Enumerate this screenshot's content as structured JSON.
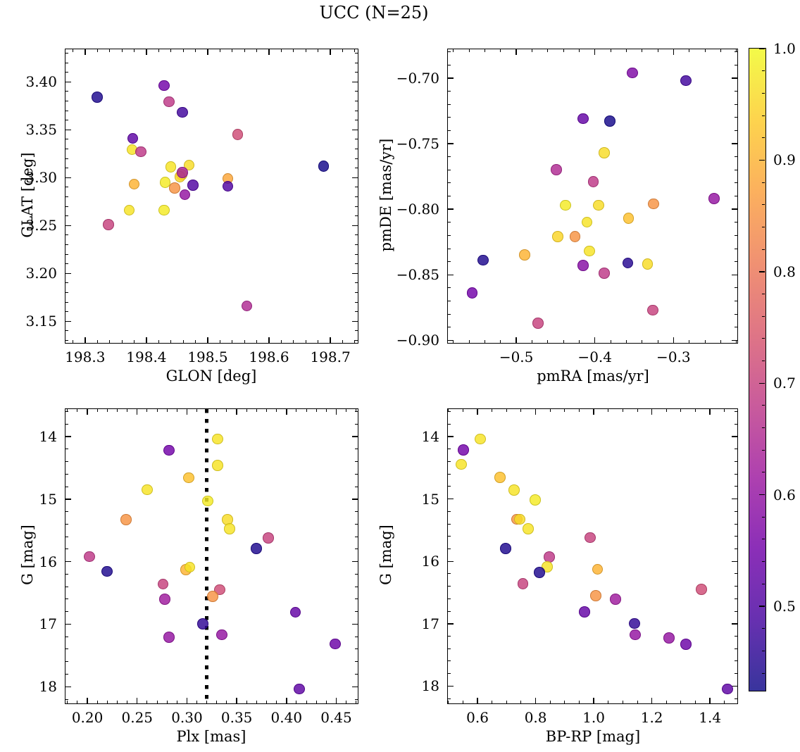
{
  "title": "UCC (N=25)",
  "colorbar": {
    "colormap": "plasma",
    "vmin": 0.423,
    "vmax": 1.0,
    "tick_values": [
      1.0,
      0.9,
      0.8,
      0.7,
      0.6,
      0.5
    ],
    "tick_labels": [
      "1.0",
      "0.9",
      "0.8",
      "0.7",
      "0.6",
      "0.5"
    ],
    "minor_step": 0.02
  },
  "chart_data": [
    {
      "id": "glon-glat",
      "type": "scatter",
      "xlabel": "GLON [deg]",
      "ylabel": "GLAT [deg]",
      "xlim": [
        198.268,
        198.747
      ],
      "ylim_top_bottom": [
        3.434,
        3.126
      ],
      "xticks": {
        "values": [
          198.3,
          198.4,
          198.5,
          198.6,
          198.7
        ],
        "labels": [
          "198.3",
          "198.4",
          "198.5",
          "198.6",
          "198.7"
        ],
        "minor_step": 0.02
      },
      "yticks": {
        "values": [
          3.15,
          3.2,
          3.25,
          3.3,
          3.35,
          3.4
        ],
        "labels": [
          "3.15",
          "3.20",
          "3.25",
          "3.30",
          "3.35",
          "3.40"
        ],
        "minor_step": 0.01
      },
      "points": [
        [
          198.32,
          3.384,
          0.44
        ],
        [
          198.429,
          3.396,
          0.55
        ],
        [
          198.437,
          3.379,
          0.68
        ],
        [
          198.459,
          3.368,
          0.48
        ],
        [
          198.378,
          3.341,
          0.52
        ],
        [
          198.377,
          3.329,
          0.97
        ],
        [
          198.391,
          3.327,
          0.68
        ],
        [
          198.549,
          3.345,
          0.72
        ],
        [
          198.44,
          3.311,
          0.97
        ],
        [
          198.47,
          3.313,
          0.96
        ],
        [
          198.458,
          3.303,
          0.96
        ],
        [
          198.455,
          3.301,
          0.95
        ],
        [
          198.459,
          3.305,
          0.63
        ],
        [
          198.431,
          3.295,
          0.98
        ],
        [
          198.446,
          3.289,
          0.85
        ],
        [
          198.476,
          3.292,
          0.5
        ],
        [
          198.463,
          3.282,
          0.6
        ],
        [
          198.533,
          3.299,
          0.88
        ],
        [
          198.533,
          3.291,
          0.5
        ],
        [
          198.38,
          3.293,
          0.9
        ],
        [
          198.689,
          3.312,
          0.43
        ],
        [
          198.372,
          3.266,
          0.97
        ],
        [
          198.429,
          3.266,
          0.98
        ],
        [
          198.338,
          3.251,
          0.7
        ],
        [
          198.564,
          3.166,
          0.65
        ]
      ]
    },
    {
      "id": "pmra-pmde",
      "type": "scatter",
      "xlabel": "pmRA [mas/yr]",
      "ylabel": "pmDE [mas/yr]",
      "xlim": [
        -0.587,
        -0.217
      ],
      "ylim_top_bottom": [
        -0.678,
        -0.903
      ],
      "xticks": {
        "values": [
          -0.5,
          -0.4,
          -0.3
        ],
        "labels": [
          "−0.5",
          "−0.4",
          "−0.3"
        ],
        "minor_step": 0.02
      },
      "yticks": {
        "values": [
          -0.9,
          -0.85,
          -0.8,
          -0.75,
          -0.7
        ],
        "labels": [
          "−0.90",
          "−0.85",
          "−0.80",
          "−0.75",
          "−0.70"
        ],
        "minor_step": 0.01
      },
      "points": [
        [
          -0.352,
          -0.696,
          0.57
        ],
        [
          -0.284,
          -0.702,
          0.48
        ],
        [
          -0.415,
          -0.731,
          0.53
        ],
        [
          -0.381,
          -0.733,
          0.43
        ],
        [
          -0.388,
          -0.757,
          0.96
        ],
        [
          -0.449,
          -0.77,
          0.65
        ],
        [
          -0.402,
          -0.779,
          0.68
        ],
        [
          -0.437,
          -0.797,
          0.98
        ],
        [
          -0.395,
          -0.797,
          0.96
        ],
        [
          -0.325,
          -0.796,
          0.85
        ],
        [
          -0.248,
          -0.792,
          0.6
        ],
        [
          -0.357,
          -0.807,
          0.92
        ],
        [
          -0.41,
          -0.81,
          0.97
        ],
        [
          -0.447,
          -0.821,
          0.95
        ],
        [
          -0.425,
          -0.821,
          0.85
        ],
        [
          -0.407,
          -0.832,
          0.97
        ],
        [
          -0.489,
          -0.835,
          0.9
        ],
        [
          -0.542,
          -0.839,
          0.44
        ],
        [
          -0.415,
          -0.843,
          0.58
        ],
        [
          -0.358,
          -0.841,
          0.45
        ],
        [
          -0.333,
          -0.842,
          0.96
        ],
        [
          -0.388,
          -0.849,
          0.68
        ],
        [
          -0.556,
          -0.864,
          0.55
        ],
        [
          -0.326,
          -0.877,
          0.7
        ],
        [
          -0.472,
          -0.887,
          0.7
        ]
      ]
    },
    {
      "id": "plx-g",
      "type": "scatter",
      "xlabel": "Plx [mas]",
      "ylabel": "G [mag]",
      "xlim": [
        0.178,
        0.473
      ],
      "ylim_top_bottom": [
        13.56,
        18.29
      ],
      "vline_x": 0.32,
      "xticks": {
        "values": [
          0.2,
          0.25,
          0.3,
          0.35,
          0.4,
          0.45
        ],
        "labels": [
          "0.20",
          "0.25",
          "0.30",
          "0.35",
          "0.40",
          "0.45"
        ],
        "minor_step": 0.01
      },
      "yticks": {
        "values": [
          14,
          15,
          16,
          17,
          18
        ],
        "labels": [
          "14",
          "15",
          "16",
          "17",
          "18"
        ],
        "minor_step": 0.2
      },
      "points": [
        [
          0.331,
          14.04,
          0.97
        ],
        [
          0.282,
          14.22,
          0.55
        ],
        [
          0.331,
          14.46,
          0.97
        ],
        [
          0.302,
          14.66,
          0.92
        ],
        [
          0.26,
          14.85,
          0.97
        ],
        [
          0.321,
          15.03,
          0.98
        ],
        [
          0.239,
          15.33,
          0.85
        ],
        [
          0.341,
          15.33,
          0.96
        ],
        [
          0.343,
          15.48,
          0.97
        ],
        [
          0.382,
          15.62,
          0.7
        ],
        [
          0.37,
          15.79,
          0.44
        ],
        [
          0.202,
          15.92,
          0.68
        ],
        [
          0.299,
          16.13,
          0.9
        ],
        [
          0.303,
          16.09,
          0.97
        ],
        [
          0.22,
          16.16,
          0.44
        ],
        [
          0.276,
          16.36,
          0.7
        ],
        [
          0.333,
          16.45,
          0.72
        ],
        [
          0.326,
          16.56,
          0.85
        ],
        [
          0.278,
          16.6,
          0.62
        ],
        [
          0.409,
          16.81,
          0.53
        ],
        [
          0.316,
          17.0,
          0.46
        ],
        [
          0.335,
          17.17,
          0.6
        ],
        [
          0.282,
          17.21,
          0.6
        ],
        [
          0.449,
          17.32,
          0.54
        ],
        [
          0.413,
          18.04,
          0.52
        ]
      ]
    },
    {
      "id": "bprp-g",
      "type": "scatter",
      "xlabel": "BP-RP [mag]",
      "ylabel": "G [mag]",
      "xlim": [
        0.498,
        1.499
      ],
      "ylim_top_bottom": [
        13.56,
        18.3
      ],
      "xticks": {
        "values": [
          0.6,
          0.8,
          1.0,
          1.2,
          1.4
        ],
        "labels": [
          "0.6",
          "0.8",
          "1.0",
          "1.2",
          "1.4"
        ],
        "minor_step": 0.05
      },
      "yticks": {
        "values": [
          14,
          15,
          16,
          17,
          18
        ],
        "labels": [
          "14",
          "15",
          "16",
          "17",
          "18"
        ],
        "minor_step": 0.2
      },
      "points": [
        [
          0.61,
          14.04,
          0.97
        ],
        [
          0.552,
          14.22,
          0.55
        ],
        [
          0.544,
          14.45,
          0.97
        ],
        [
          0.678,
          14.66,
          0.92
        ],
        [
          0.726,
          14.86,
          0.97
        ],
        [
          0.799,
          15.02,
          0.98
        ],
        [
          0.736,
          15.33,
          0.85
        ],
        [
          0.745,
          15.33,
          0.96
        ],
        [
          0.775,
          15.48,
          0.97
        ],
        [
          0.988,
          15.62,
          0.7
        ],
        [
          0.697,
          15.8,
          0.44
        ],
        [
          0.847,
          15.93,
          0.68
        ],
        [
          0.84,
          16.09,
          0.97
        ],
        [
          1.014,
          16.13,
          0.9
        ],
        [
          0.813,
          16.18,
          0.44
        ],
        [
          0.757,
          16.36,
          0.7
        ],
        [
          1.371,
          16.45,
          0.72
        ],
        [
          1.007,
          16.55,
          0.85
        ],
        [
          1.075,
          16.61,
          0.62
        ],
        [
          0.968,
          16.81,
          0.53
        ],
        [
          1.141,
          17.0,
          0.46
        ],
        [
          1.143,
          17.18,
          0.6
        ],
        [
          1.259,
          17.23,
          0.6
        ],
        [
          1.318,
          17.33,
          0.54
        ],
        [
          1.461,
          18.05,
          0.52
        ]
      ]
    }
  ]
}
